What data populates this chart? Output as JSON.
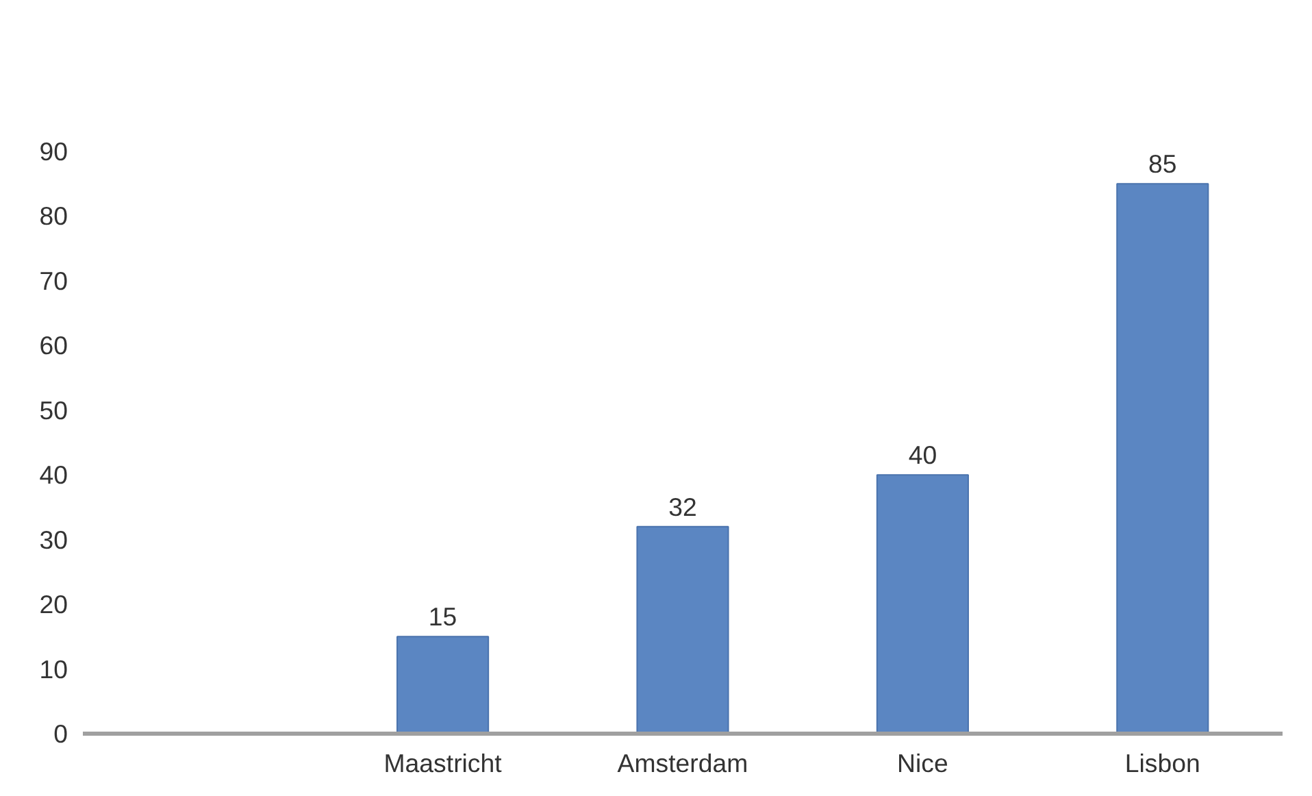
{
  "chart_data": {
    "type": "bar",
    "categories": [
      null,
      "Maastricht",
      "Amsterdam",
      "Nice",
      "Lisbon"
    ],
    "values": [
      null,
      15,
      32,
      40,
      85
    ],
    "color": "#5b86c2",
    "ylim": [
      0,
      90
    ],
    "yticks": [
      0,
      10,
      20,
      30,
      40,
      50,
      60,
      70,
      80,
      90
    ],
    "grid": false,
    "data_labels": true
  }
}
